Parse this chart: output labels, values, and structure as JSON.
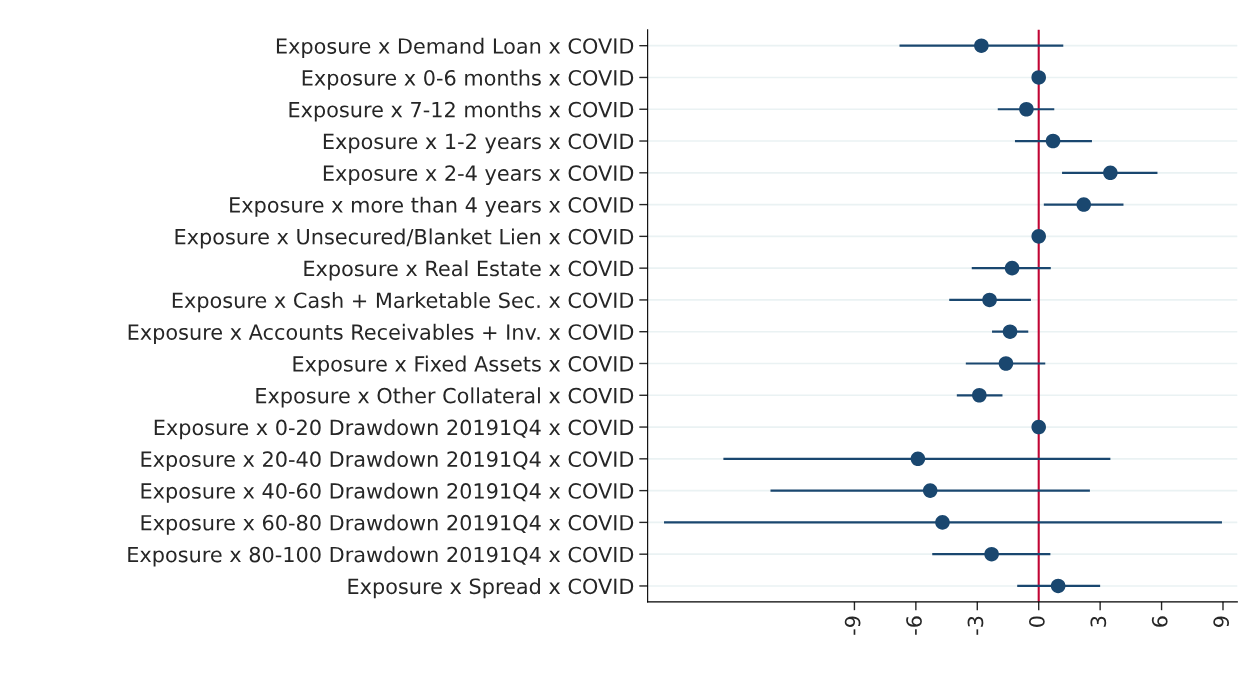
{
  "chart_data": {
    "type": "scatter",
    "orientation": "horizontal",
    "categories": [
      "Exposure x Demand Loan x COVID",
      "Exposure x 0-6 months x COVID",
      "Exposure x 7-12 months x COVID",
      "Exposure x 1-2 years x COVID",
      "Exposure x 2-4 years x COVID",
      "Exposure x more than 4 years x COVID",
      "Exposure x Unsecured/Blanket Lien x COVID",
      "Exposure x Real Estate x COVID",
      "Exposure x Cash + Marketable Sec. x COVID",
      "Exposure x Accounts Receivables + Inv. x COVID",
      "Exposure x Fixed Assets x COVID",
      "Exposure x Other Collateral x COVID",
      "Exposure x 0-20 Drawdown 20191Q4 x COVID",
      "Exposure x 20-40 Drawdown 20191Q4 x COVID",
      "Exposure x 40-60 Drawdown 20191Q4 x COVID",
      "Exposure x 60-80 Drawdown 20191Q4 x COVID",
      "Exposure x 80-100 Drawdown 20191Q4 x COVID",
      "Exposure x Spread x COVID"
    ],
    "series": [
      {
        "color": "#1a476f",
        "values": [
          -2.8,
          0,
          -0.6,
          0.7,
          3.5,
          2.2,
          0,
          -1.3,
          -2.4,
          -1.4,
          -1.6,
          -2.9,
          0,
          -5.9,
          -5.3,
          -4.7,
          -2.3,
          0.95
        ],
        "errors": [
          [
            -6.8,
            1.2
          ],
          null,
          [
            -2.0,
            0.76
          ],
          [
            -1.16,
            2.6
          ],
          [
            1.14,
            5.8
          ],
          [
            0.25,
            4.14
          ],
          null,
          [
            -3.27,
            0.59
          ],
          [
            -4.37,
            -0.38
          ],
          [
            -2.28,
            -0.51
          ],
          [
            -3.56,
            0.32
          ],
          [
            -4.0,
            -1.77
          ],
          null,
          [
            -15.4,
            3.5
          ],
          [
            -13.1,
            2.5
          ],
          [
            -18.3,
            8.95
          ],
          [
            -5.2,
            0.57
          ],
          [
            -1.05,
            3.0
          ]
        ]
      }
    ],
    "xlim": [
      -19.1,
      9.7
    ],
    "xticks": [
      -9,
      -6,
      -3,
      0,
      3,
      6,
      9
    ],
    "ref_lines": [
      {
        "axis": "x",
        "value": 0,
        "color": "#c10534"
      }
    ],
    "grid": "y",
    "marker": "circle"
  }
}
